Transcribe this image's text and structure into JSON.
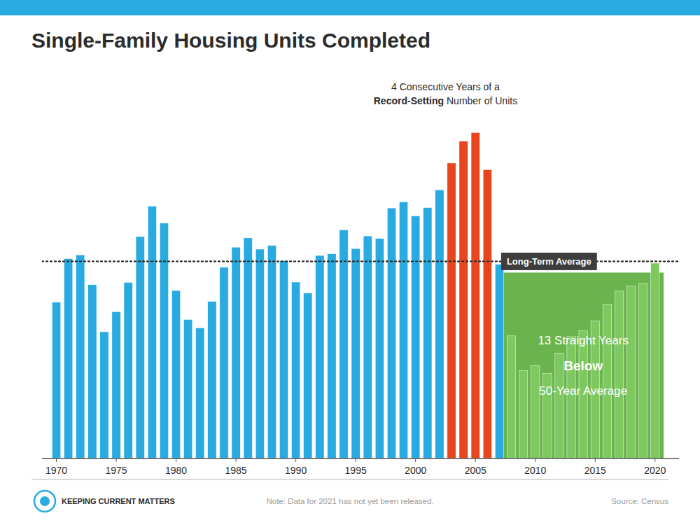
{
  "chart_data": {
    "type": "bar",
    "title": "Single-Family Housing Units Completed",
    "x": [
      1970,
      1971,
      1972,
      1973,
      1974,
      1975,
      1976,
      1977,
      1978,
      1979,
      1980,
      1981,
      1982,
      1983,
      1984,
      1985,
      1986,
      1987,
      1988,
      1989,
      1990,
      1991,
      1992,
      1993,
      1994,
      1995,
      1996,
      1997,
      1998,
      1999,
      2000,
      2001,
      2002,
      2003,
      2004,
      2005,
      2006,
      2007,
      2008,
      2009,
      2010,
      2011,
      2012,
      2013,
      2014,
      2015,
      2016,
      2017,
      2018,
      2019,
      2020
    ],
    "values": [
      793,
      1014,
      1033,
      882,
      643,
      745,
      893,
      1126,
      1280,
      1194,
      852,
      705,
      663,
      797,
      970,
      1072,
      1119,
      1062,
      1081,
      1003,
      895,
      840,
      1030,
      1039,
      1160,
      1065,
      1129,
      1116,
      1271,
      1302,
      1231,
      1273,
      1363,
      1499,
      1610,
      1654,
      1465,
      985,
      622,
      445,
      471,
      431,
      535,
      618,
      648,
      697,
      783,
      849,
      876,
      888,
      991
    ],
    "colors": [
      "#29aae1",
      "#29aae1",
      "#29aae1",
      "#29aae1",
      "#29aae1",
      "#29aae1",
      "#29aae1",
      "#29aae1",
      "#29aae1",
      "#29aae1",
      "#29aae1",
      "#29aae1",
      "#29aae1",
      "#29aae1",
      "#29aae1",
      "#29aae1",
      "#29aae1",
      "#29aae1",
      "#29aae1",
      "#29aae1",
      "#29aae1",
      "#29aae1",
      "#29aae1",
      "#29aae1",
      "#29aae1",
      "#29aae1",
      "#29aae1",
      "#29aae1",
      "#29aae1",
      "#29aae1",
      "#29aae1",
      "#29aae1",
      "#29aae1",
      "#e8451e",
      "#e8451e",
      "#e8451e",
      "#e8451e",
      "#29aae1",
      "#7ec860",
      "#7ec860",
      "#7ec860",
      "#7ec860",
      "#7ec860",
      "#7ec860",
      "#7ec860",
      "#7ec860",
      "#7ec860",
      "#7ec860",
      "#7ec860",
      "#7ec860",
      "#7ec860"
    ],
    "xlim": [
      1968.8,
      2022.0
    ],
    "xticks": [
      1970,
      1975,
      1980,
      1985,
      1990,
      1995,
      2000,
      2005,
      2010,
      2015,
      2020
    ],
    "ylim": [
      0,
      1900
    ],
    "tick_labels": "x",
    "grid": false,
    "average": {
      "value": 1000,
      "label": "Long-Term Average"
    },
    "annotations": {
      "record": [
        "4 Consecutive Years of a",
        "Record-Setting",
        " Number of Units"
      ],
      "below_average": [
        "13 Straight Years",
        "Below",
        "50-Year Average"
      ]
    },
    "footer_note": "Note: Data for 2021 has not yet been released.",
    "source": "Source: Census",
    "brand": "KEEPING CURRENT MATTERS"
  }
}
